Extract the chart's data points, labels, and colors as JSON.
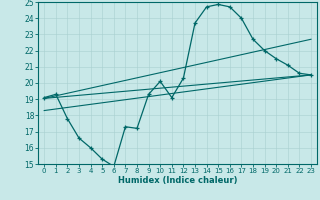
{
  "xlabel": "Humidex (Indice chaleur)",
  "ylabel": "",
  "xlim": [
    -0.5,
    23.5
  ],
  "ylim": [
    15,
    25
  ],
  "xticks": [
    0,
    1,
    2,
    3,
    4,
    5,
    6,
    7,
    8,
    9,
    10,
    11,
    12,
    13,
    14,
    15,
    16,
    17,
    18,
    19,
    20,
    21,
    22,
    23
  ],
  "yticks": [
    15,
    16,
    17,
    18,
    19,
    20,
    21,
    22,
    23,
    24,
    25
  ],
  "bg_color": "#c8e8e8",
  "line_color": "#006868",
  "line1_x": [
    0,
    1,
    2,
    3,
    4,
    5,
    6,
    7,
    8,
    9,
    10,
    11,
    12,
    13,
    14,
    15,
    16,
    17,
    18,
    19,
    20,
    21,
    22,
    23
  ],
  "line1_y": [
    19.1,
    19.3,
    17.8,
    16.6,
    16.0,
    15.3,
    14.85,
    17.3,
    17.2,
    19.3,
    20.1,
    19.1,
    20.3,
    23.7,
    24.7,
    24.85,
    24.7,
    24.0,
    22.7,
    22.0,
    21.5,
    21.1,
    20.6,
    20.5
  ],
  "line2_x": [
    0,
    23
  ],
  "line2_y": [
    19.05,
    20.5
  ],
  "line3_x": [
    0,
    23
  ],
  "line3_y": [
    18.3,
    20.5
  ],
  "line4_x": [
    0,
    23
  ],
  "line4_y": [
    19.05,
    22.7
  ]
}
